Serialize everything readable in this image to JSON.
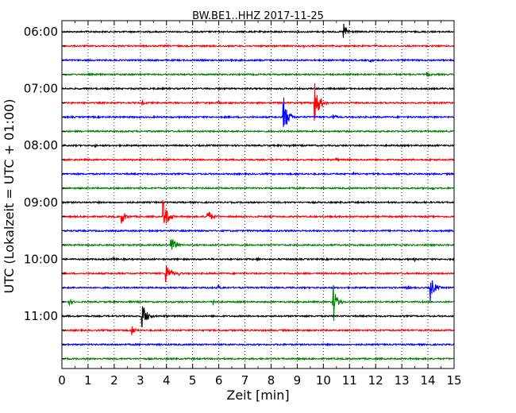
{
  "chart_data": {
    "type": "line",
    "title": "BW.BE1..HHZ 2017-11-25",
    "xlabel": "Zeit  [min]",
    "ylabel": "UTC (Lokalzeit = UTC + 01:00)",
    "xlim": [
      0,
      15
    ],
    "x_ticks": [
      "0",
      "1",
      "2",
      "3",
      "4",
      "5",
      "6",
      "7",
      "8",
      "9",
      "10",
      "11",
      "12",
      "13",
      "14",
      "15"
    ],
    "x_minor_step": 0.5,
    "y_tick_labels": [
      "06:00",
      "07:00",
      "08:00",
      "09:00",
      "10:00",
      "11:00"
    ],
    "grid": "vertical-dotted",
    "trace_colors": [
      "#000000",
      "#ff0000",
      "#0000ff",
      "#008000"
    ],
    "traces": [
      {
        "time": "06:00",
        "events": [
          {
            "x": 10.8,
            "amp": 9
          }
        ]
      },
      {
        "time": "06:15",
        "events": [
          {
            "x": 9.3,
            "amp": 1.5
          },
          {
            "x": 12.0,
            "amp": 1.5
          }
        ]
      },
      {
        "time": "06:30",
        "events": [
          {
            "x": 6.5,
            "amp": 1.5
          },
          {
            "x": 11.8,
            "amp": 2
          }
        ]
      },
      {
        "time": "06:45",
        "events": [
          {
            "x": 14.0,
            "amp": 2.5
          }
        ]
      },
      {
        "time": "07:00",
        "events": []
      },
      {
        "time": "07:15",
        "events": [
          {
            "x": 3.1,
            "amp": 2.5
          },
          {
            "x": 6.0,
            "amp": 1.5
          },
          {
            "x": 9.7,
            "amp": 21
          }
        ]
      },
      {
        "time": "07:30",
        "events": [
          {
            "x": 8.5,
            "amp": 19
          },
          {
            "x": 10.4,
            "amp": 3
          },
          {
            "x": 14.3,
            "amp": 1.5
          }
        ]
      },
      {
        "time": "07:45",
        "events": []
      },
      {
        "time": "08:00",
        "events": [
          {
            "x": 1.3,
            "amp": 1.5
          },
          {
            "x": 8.7,
            "amp": 1.5
          }
        ]
      },
      {
        "time": "08:15",
        "events": [
          {
            "x": 10.5,
            "amp": 2
          },
          {
            "x": 14.1,
            "amp": 1.5
          }
        ]
      },
      {
        "time": "08:30",
        "events": [
          {
            "x": 9.0,
            "amp": 2
          },
          {
            "x": 11.2,
            "amp": 1.5
          }
        ]
      },
      {
        "time": "08:45",
        "events": [
          {
            "x": 14.2,
            "amp": 2
          }
        ]
      },
      {
        "time": "09:00",
        "events": []
      },
      {
        "time": "09:15",
        "events": [
          {
            "x": 2.3,
            "amp": 8
          },
          {
            "x": 3.9,
            "amp": 18
          },
          {
            "x": 5.6,
            "amp": 8
          }
        ]
      },
      {
        "time": "09:30",
        "events": []
      },
      {
        "time": "09:45",
        "events": [
          {
            "x": 4.2,
            "amp": 10
          },
          {
            "x": 7.1,
            "amp": 1.5
          }
        ]
      },
      {
        "time": "10:00",
        "events": [
          {
            "x": 2.0,
            "amp": 2
          },
          {
            "x": 7.5,
            "amp": 2
          },
          {
            "x": 13.5,
            "amp": 1.5
          }
        ]
      },
      {
        "time": "10:15",
        "events": [
          {
            "x": 4.0,
            "amp": 12
          },
          {
            "x": 4.5,
            "amp": 2
          }
        ]
      },
      {
        "time": "10:30",
        "events": [
          {
            "x": 6.0,
            "amp": 2
          },
          {
            "x": 13.2,
            "amp": 3
          },
          {
            "x": 14.1,
            "amp": 14
          }
        ]
      },
      {
        "time": "10:45",
        "events": [
          {
            "x": 0.3,
            "amp": 3
          },
          {
            "x": 5.8,
            "amp": 3
          },
          {
            "x": 10.4,
            "amp": 15
          }
        ]
      },
      {
        "time": "11:00",
        "events": [
          {
            "x": 3.1,
            "amp": 15
          },
          {
            "x": 4.0,
            "amp": 1.5
          }
        ]
      },
      {
        "time": "11:15",
        "events": [
          {
            "x": 2.7,
            "amp": 5
          }
        ]
      },
      {
        "time": "11:30",
        "events": []
      },
      {
        "time": "11:45",
        "events": []
      }
    ]
  }
}
